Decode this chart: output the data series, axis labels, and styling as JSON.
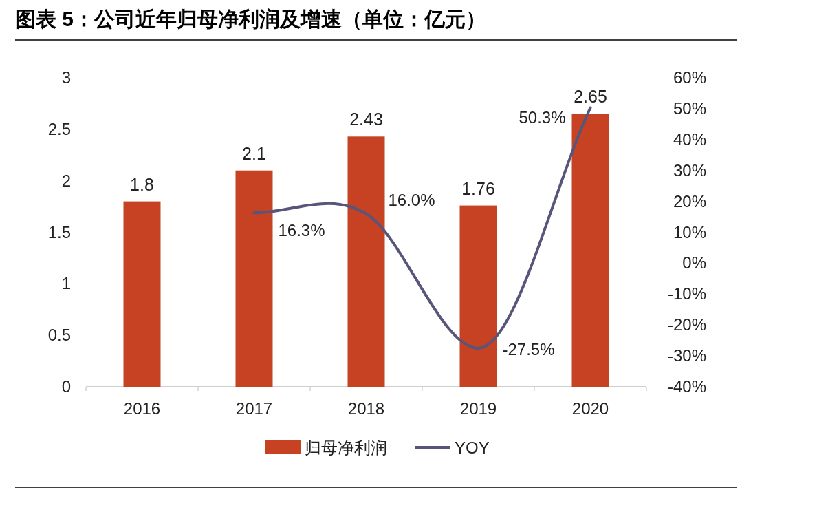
{
  "chart_data": {
    "type": "bar",
    "title": "图表 5：公司近年归母净利润及增速（单位：亿元）",
    "categories": [
      "2016",
      "2017",
      "2018",
      "2019",
      "2020"
    ],
    "series": [
      {
        "name": "归母净利润",
        "color": "#c64223",
        "values": [
          1.8,
          2.1,
          2.43,
          1.76,
          2.65
        ]
      },
      {
        "name": "YOY",
        "type": "line",
        "axis": "y2",
        "color": "#57567a",
        "values": [
          null,
          16.3,
          16.0,
          -27.5,
          50.3
        ],
        "value_labels": [
          null,
          "16.3%",
          "16.0%",
          "-27.5%",
          "50.3%"
        ]
      }
    ],
    "data_labels": true,
    "ylim": [
      0,
      3
    ],
    "yticks": [
      0,
      0.5,
      1,
      1.5,
      2,
      2.5,
      3
    ],
    "y2lim": [
      -40,
      60
    ],
    "y2ticks": [
      {
        "value": -40,
        "label": "-40%"
      },
      {
        "value": -30,
        "label": "-30%"
      },
      {
        "value": -20,
        "label": "-20%"
      },
      {
        "value": -10,
        "label": "-10%"
      },
      {
        "value": 0,
        "label": "0%"
      },
      {
        "value": 10,
        "label": "10%"
      },
      {
        "value": 20,
        "label": "20%"
      },
      {
        "value": 30,
        "label": "30%"
      },
      {
        "value": 40,
        "label": "40%"
      },
      {
        "value": 50,
        "label": "50%"
      },
      {
        "value": 60,
        "label": "60%"
      }
    ],
    "grid": false,
    "legend": "bottom",
    "marker": "none",
    "line_style": "solid"
  }
}
